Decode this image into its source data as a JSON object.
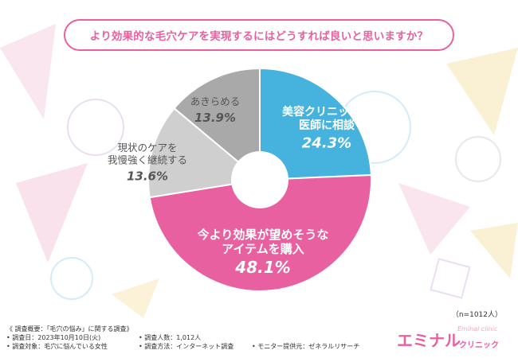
{
  "title": "より効果的な毛穴ケアを実現するにはどうすれば良いと思いますか？",
  "chart_data": {
    "type": "pie",
    "donut": true,
    "slices": [
      {
        "label_lines": [
          "美容クリニックや",
          "医師に相談"
        ],
        "value": 24.3,
        "value_label": "24.3%",
        "color": "#46b3de"
      },
      {
        "label_lines": [
          "今より効果が望めそうな",
          "アイテムを購入"
        ],
        "value": 48.1,
        "value_label": "48.1%",
        "color": "#e8609f"
      },
      {
        "label_lines": [
          "現状のケアを",
          "我慢強く継続する"
        ],
        "value": 13.6,
        "value_label": "13.6%",
        "color": "#cfcfcf"
      },
      {
        "label_lines": [
          "あきらめる"
        ],
        "value": 13.9,
        "value_label": "13.9%",
        "color": "#a9a9a9"
      }
    ]
  },
  "sample_note": "（n=1012人）",
  "footer": {
    "overview": "《 調査概要：「毛穴の悩み」に関する調査》",
    "date": "• 調査日：2023年10月10日(火)",
    "count": "• 調査人数：1,012人",
    "target": "• 調査対象：毛穴に悩んでいる女性",
    "method": "• 調査方法：インターネット調査",
    "provider": "• モニター提供元：ゼネラルリサーチ"
  },
  "logo": {
    "main": "エミナル",
    "sub": "Eminal clinic",
    "clinic": "クリニック"
  }
}
